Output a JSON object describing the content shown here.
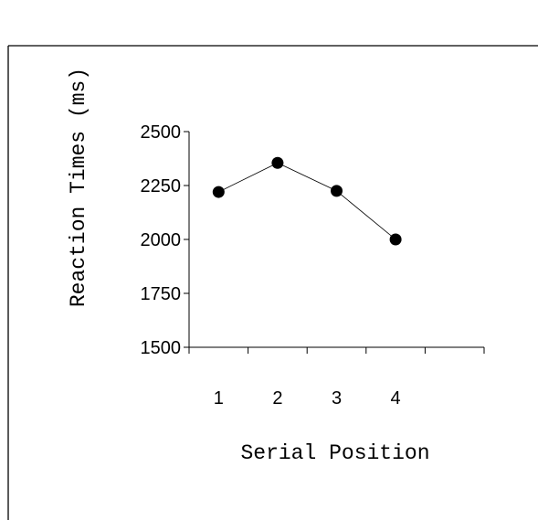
{
  "chart_data": {
    "type": "line",
    "title": "",
    "xlabel": "Serial Position",
    "ylabel": "Reaction Times (ms)",
    "categories": [
      "1",
      "2",
      "3",
      "4"
    ],
    "x_tick_labels": [
      "1",
      "2",
      "3",
      "4"
    ],
    "y_tick_labels": [
      "1500",
      "1750",
      "2000",
      "2250",
      "2500"
    ],
    "y_ticks": [
      1500,
      1750,
      2000,
      2250,
      2500
    ],
    "ylim": [
      1500,
      2500
    ],
    "grid": false,
    "legend": "none",
    "series": [
      {
        "values": [
          2220,
          2355,
          2225,
          2000
        ],
        "color": "#000000"
      }
    ]
  }
}
